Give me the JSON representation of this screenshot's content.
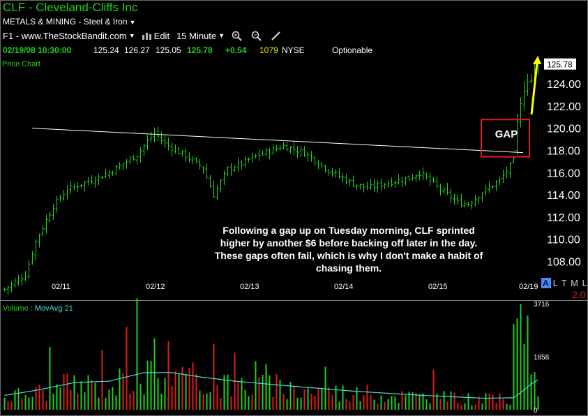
{
  "header": {
    "title": "CLF - Cleveland-Cliffs Inc",
    "industry": "METALS & MINING - Steel & Iron",
    "toolbar": {
      "source": "F1 - www.TheStockBandit.com",
      "edit": "Edit",
      "interval": "15 Minute"
    },
    "quote": {
      "datetime": "02/19/08 10:30:00",
      "open": "125.24",
      "high": "126.27",
      "low": "125.05",
      "last": "125.78",
      "change": "+0.54",
      "volume": "1079",
      "exchange": "NYSE",
      "optionable": "Optionable"
    }
  },
  "panes": {
    "price_label": "Price Chart",
    "volume_label": "Volume",
    "volume_ma_label": "MovAvg 21"
  },
  "colors": {
    "up": "#1fd11f",
    "down": "#e01c1c",
    "ma": "#40e0e0",
    "trendline": "#ffffff",
    "gap_box": "#e01c1c",
    "arrow": "#ffff00"
  },
  "annotations": {
    "note": "Following a gap up on Tuesday morning, CLF sprinted higher by another $6 before backing off later in the day.  These gaps often fail, which is why I don't make a habit of chasing them.",
    "gap": "GAP"
  },
  "status": {
    "modes": "A L T M L",
    "mode_active": "A",
    "modes_rest": "L T M L",
    "zoom": "2.0"
  },
  "chart_data": [
    {
      "type": "bar",
      "title": "CLF - Cleveland-Cliffs Inc",
      "interval": "15 Minute",
      "x_labels": [
        "02/11",
        "02/12",
        "02/13",
        "02/14",
        "02/15",
        "02/19"
      ],
      "ylim": [
        106.4,
        126.2
      ],
      "y_ticks": [
        108,
        110,
        112,
        114,
        116,
        118,
        120,
        122,
        124
      ],
      "last_price_label": "125.78",
      "close_path": [
        [
          0,
          105.5
        ],
        [
          6,
          106.8
        ],
        [
          9,
          109.8
        ],
        [
          14,
          113.0
        ],
        [
          18,
          114.5
        ],
        [
          24,
          115.2
        ],
        [
          30,
          116.0
        ],
        [
          38,
          117.6
        ],
        [
          43,
          119.6
        ],
        [
          46,
          118.6
        ],
        [
          52,
          117.5
        ],
        [
          57,
          116.4
        ],
        [
          60,
          114.0
        ],
        [
          64,
          116.3
        ],
        [
          68,
          116.8
        ],
        [
          72,
          117.5
        ],
        [
          80,
          118.4
        ],
        [
          86,
          117.8
        ],
        [
          93,
          116.2
        ],
        [
          100,
          115.0
        ],
        [
          104,
          114.6
        ],
        [
          110,
          115.1
        ],
        [
          116,
          115.5
        ],
        [
          119,
          116.0
        ],
        [
          125,
          114.5
        ],
        [
          130,
          113.3
        ],
        [
          133,
          113.2
        ],
        [
          137,
          114.2
        ],
        [
          142,
          115.3
        ],
        [
          146,
          117.0
        ],
        [
          147,
          120.5
        ],
        [
          149,
          123.5
        ],
        [
          151,
          124.5
        ],
        [
          153,
          125.8
        ]
      ],
      "trendline": {
        "from": [
          10,
          120.0
        ],
        "to": [
          148,
          117.8
        ]
      },
      "gap_box_range": [
        117.8,
        120.4
      ]
    },
    {
      "type": "bar",
      "title": "Volume",
      "y_ticks": [
        0,
        1858,
        3716
      ],
      "ylim": [
        0,
        3716
      ],
      "ma_period": 21,
      "ma_path": [
        [
          0,
          500
        ],
        [
          10,
          700
        ],
        [
          20,
          950
        ],
        [
          30,
          1000
        ],
        [
          40,
          1300
        ],
        [
          48,
          1300
        ],
        [
          56,
          1150
        ],
        [
          66,
          1000
        ],
        [
          80,
          850
        ],
        [
          100,
          650
        ],
        [
          120,
          500
        ],
        [
          138,
          400
        ],
        [
          146,
          420
        ],
        [
          148,
          600
        ],
        [
          151,
          900
        ],
        [
          153,
          1050
        ]
      ],
      "spikes": [
        [
          13,
          2200
        ],
        [
          28,
          2100
        ],
        [
          35,
          2900
        ],
        [
          38,
          3900
        ],
        [
          43,
          2500
        ],
        [
          47,
          2400
        ],
        [
          60,
          2300
        ],
        [
          66,
          2000
        ],
        [
          72,
          1700
        ],
        [
          75,
          1600
        ],
        [
          92,
          1500
        ],
        [
          123,
          1400
        ],
        [
          146,
          3000
        ],
        [
          147,
          3200
        ],
        [
          148,
          3700
        ],
        [
          149,
          2300
        ],
        [
          150,
          3300
        ]
      ]
    }
  ]
}
